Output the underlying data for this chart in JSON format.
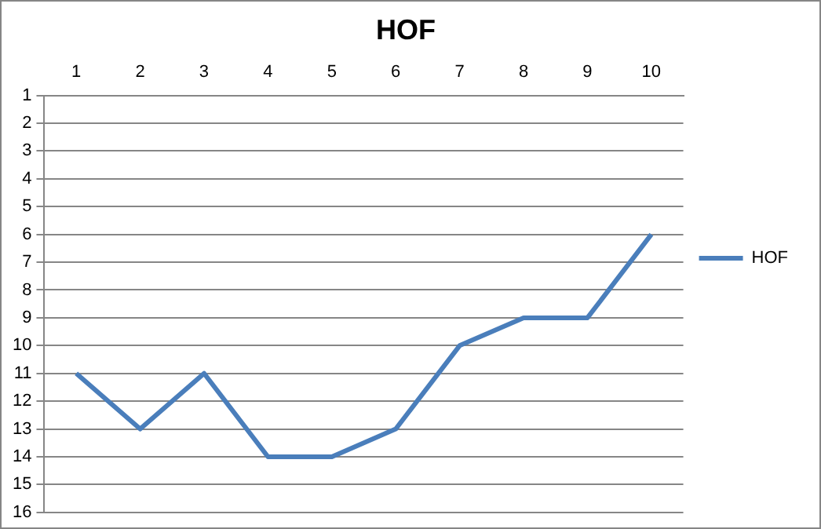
{
  "chart_data": {
    "type": "line",
    "title": "HOF",
    "categories": [
      "1",
      "2",
      "3",
      "4",
      "5",
      "6",
      "7",
      "8",
      "9",
      "10"
    ],
    "series": [
      {
        "name": "HOF",
        "color": "#4a7ebb",
        "values": [
          11,
          13,
          11,
          14,
          14,
          13,
          10,
          9,
          9,
          6
        ]
      }
    ],
    "ylim": [
      16,
      1
    ],
    "yticks": [
      1,
      2,
      3,
      4,
      5,
      6,
      7,
      8,
      9,
      10,
      11,
      12,
      13,
      14,
      15,
      16
    ],
    "grid": "y",
    "legend": "right",
    "marker": "none",
    "line_style": "solid"
  }
}
